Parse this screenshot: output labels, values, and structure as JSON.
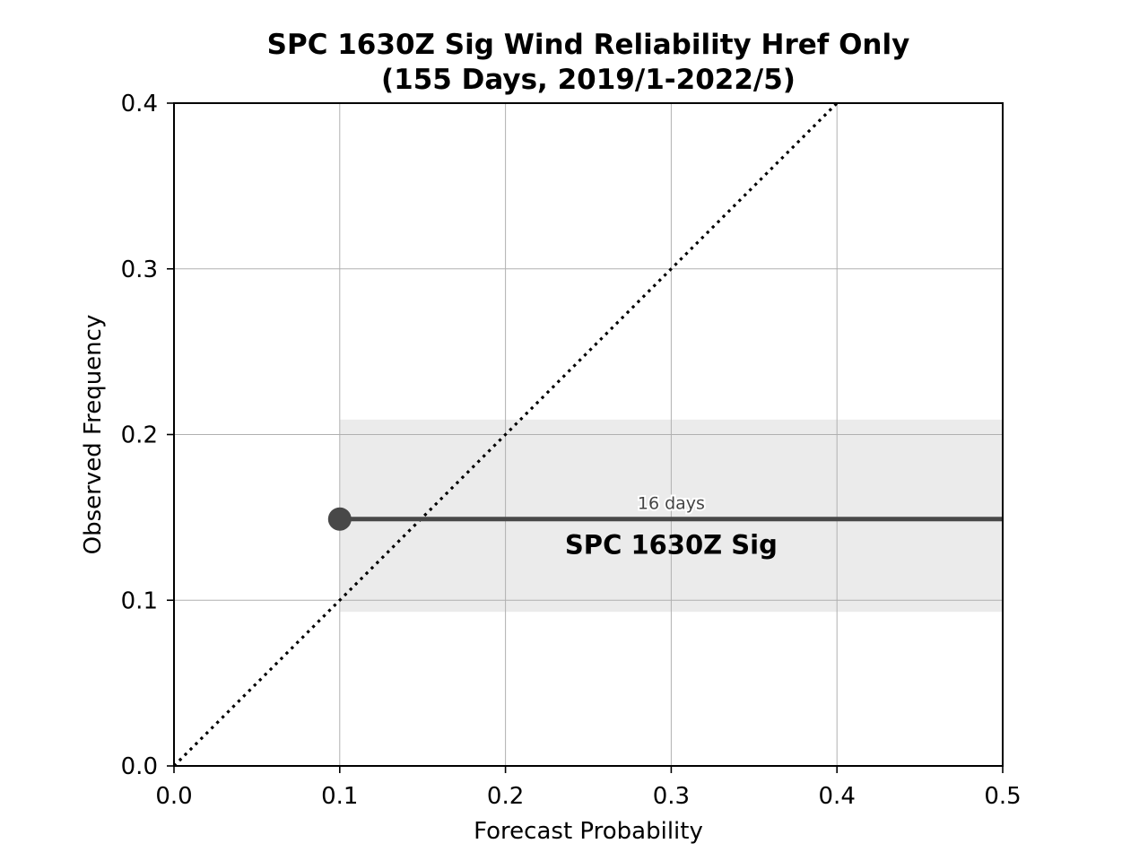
{
  "chart_data": {
    "type": "line",
    "title_line1": "SPC 1630Z Sig Wind Reliability Href Only",
    "title_line2": "(155 Days, 2019/1-2022/5)",
    "xlabel": "Forecast Probability",
    "ylabel": "Observed Frequency",
    "xlim": [
      0.0,
      0.5
    ],
    "ylim": [
      0.0,
      0.4
    ],
    "xticks": [
      "0.0",
      "0.1",
      "0.2",
      "0.3",
      "0.4",
      "0.5"
    ],
    "yticks": [
      "0.0",
      "0.1",
      "0.2",
      "0.3",
      "0.4"
    ],
    "grid": true,
    "reference_line": {
      "style": "dotted",
      "x": [
        0.0,
        0.5
      ],
      "y": [
        0.0,
        0.5
      ],
      "color": "#000000"
    },
    "series": [
      {
        "name": "SPC 1630Z Sig",
        "x": [
          0.1,
          0.5
        ],
        "y": [
          0.149,
          0.149
        ],
        "marker_at": [
          0.1,
          0.149
        ],
        "band": {
          "low": 0.093,
          "high": 0.209
        },
        "color": "#484848",
        "band_color": "#ebebeb"
      }
    ],
    "annotations": [
      {
        "text": "16 days",
        "x": 0.3,
        "y": 0.149
      },
      {
        "text": "SPC 1630Z Sig",
        "x": 0.3,
        "y": 0.149
      }
    ]
  }
}
